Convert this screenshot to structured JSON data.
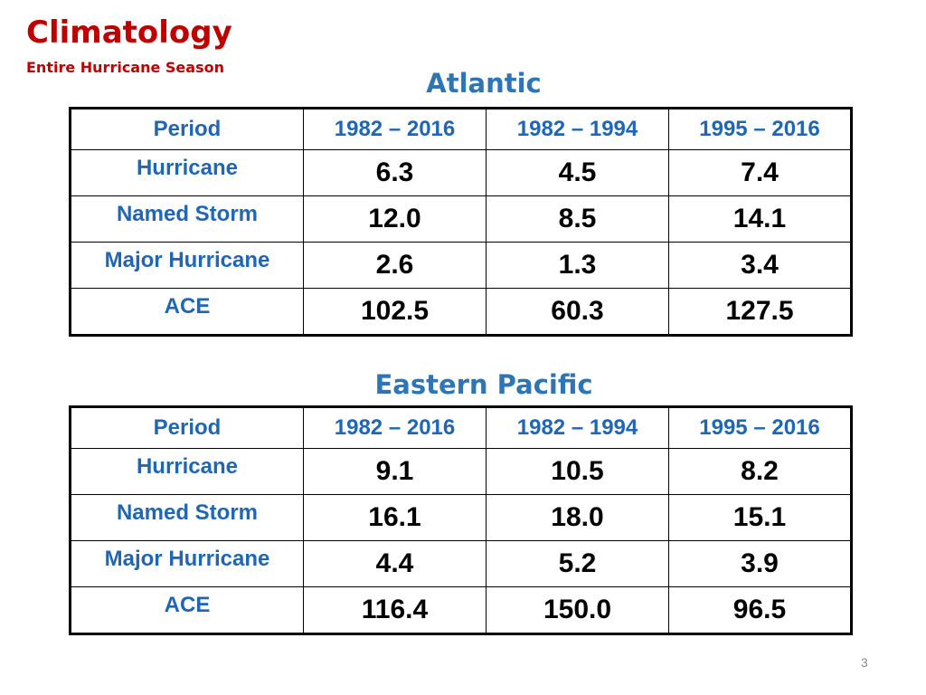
{
  "header": {
    "title": "Climatology",
    "subtitle": "Entire Hurricane Season"
  },
  "atlantic": {
    "heading": "Atlantic",
    "columns": [
      "Period",
      "1982 – 2016",
      "1982 – 1994",
      "1995 – 2016"
    ],
    "rows": [
      {
        "label": "Hurricane",
        "values": [
          "6.3",
          "4.5",
          "7.4"
        ]
      },
      {
        "label": "Named Storm",
        "values": [
          "12.0",
          "8.5",
          "14.1"
        ]
      },
      {
        "label": "Major Hurricane",
        "values": [
          "2.6",
          "1.3",
          "3.4"
        ]
      },
      {
        "label": "ACE",
        "values": [
          "102.5",
          "60.3",
          "127.5"
        ]
      }
    ]
  },
  "eastern_pacific": {
    "heading": "Eastern Pacific",
    "columns": [
      "Period",
      "1982 – 2016",
      "1982 – 1994",
      "1995 – 2016"
    ],
    "rows": [
      {
        "label": "Hurricane",
        "values": [
          "9.1",
          "10.5",
          "8.2"
        ]
      },
      {
        "label": "Named Storm",
        "values": [
          "16.1",
          "18.0",
          "15.1"
        ]
      },
      {
        "label": "Major Hurricane",
        "values": [
          "4.4",
          "5.2",
          "3.9"
        ]
      },
      {
        "label": "ACE",
        "values": [
          "116.4",
          "150.0",
          "96.5"
        ]
      }
    ]
  },
  "footer": {
    "page_number": "3"
  },
  "colors": {
    "title_red": "#c00000",
    "heading_blue": "#2e75b6",
    "label_blue": "#1f66b5",
    "value_black": "#000000"
  }
}
